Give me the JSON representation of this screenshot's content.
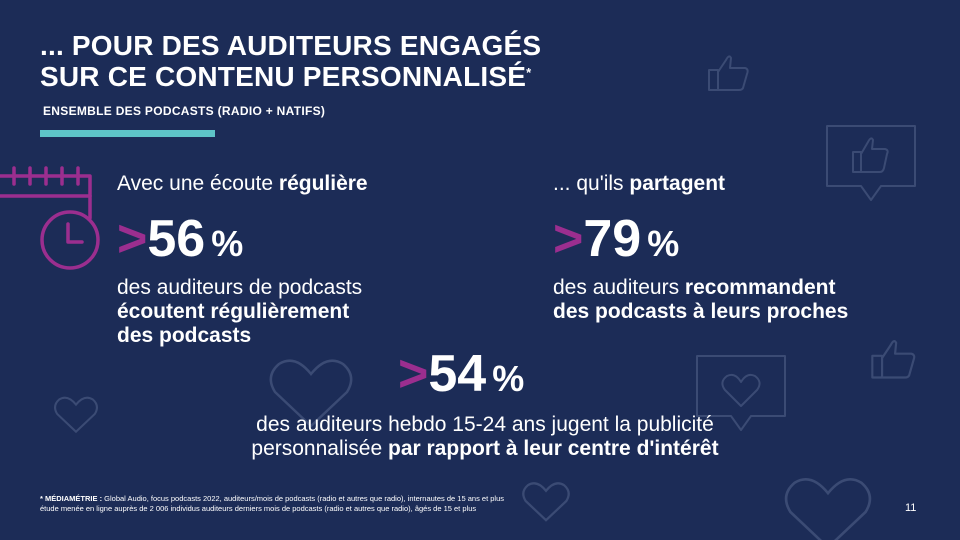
{
  "title": {
    "line1": "... POUR DES AUDITEURS ENGAGÉS",
    "line2": "SUR CE CONTENU PERSONNALISÉ",
    "asterisk": "*"
  },
  "subtitle": "ENSEMBLE DES PODCASTS (RADIO + NATIFS)",
  "blocks": {
    "left": {
      "lead_normal": "Avec une écoute ",
      "lead_bold": "régulière",
      "prefix": ">",
      "value": "56",
      "unit": "%",
      "desc_line1": "des auditeurs de podcasts",
      "desc_bold1": "écoutent régulièrement",
      "desc_bold2": "des podcasts"
    },
    "right": {
      "lead_normal": "... qu'ils ",
      "lead_bold": "partagent",
      "prefix": ">",
      "value": "79",
      "unit": "%",
      "desc_normal": "des auditeurs ",
      "desc_bold1": "recommandent",
      "desc_bold2": "des podcasts à leurs proches"
    },
    "center": {
      "prefix": ">",
      "value": "54",
      "unit": "%",
      "desc_line1": "des auditeurs hebdo 15-24 ans jugent la publicité",
      "desc_normal2": "personnalisée ",
      "desc_bold2": "par rapport à leur centre d'intérêt"
    }
  },
  "source": {
    "label": "* MÉDIAMÉTRIE : ",
    "line1": "Global Audio, focus podcasts 2022, auditeurs/mois de podcasts (radio et autres que radio), internautes de 15 ans et plus",
    "line2": "étude menée en ligne auprès de 2 006 individus auditeurs derniers mois de podcasts (radio et autres que radio), âgés de 15 et plus"
  },
  "page_number": "11",
  "colors": {
    "background": "#1c2c57",
    "accent_magenta": "#9b2e8f",
    "accent_teal": "#5ec4c8",
    "text": "#ffffff"
  },
  "icons": [
    "calendar-clock-icon",
    "thumbs-up-icon",
    "thumbs-up-speech-bubble-icon",
    "heart-icon",
    "heart-speech-bubble-icon"
  ]
}
